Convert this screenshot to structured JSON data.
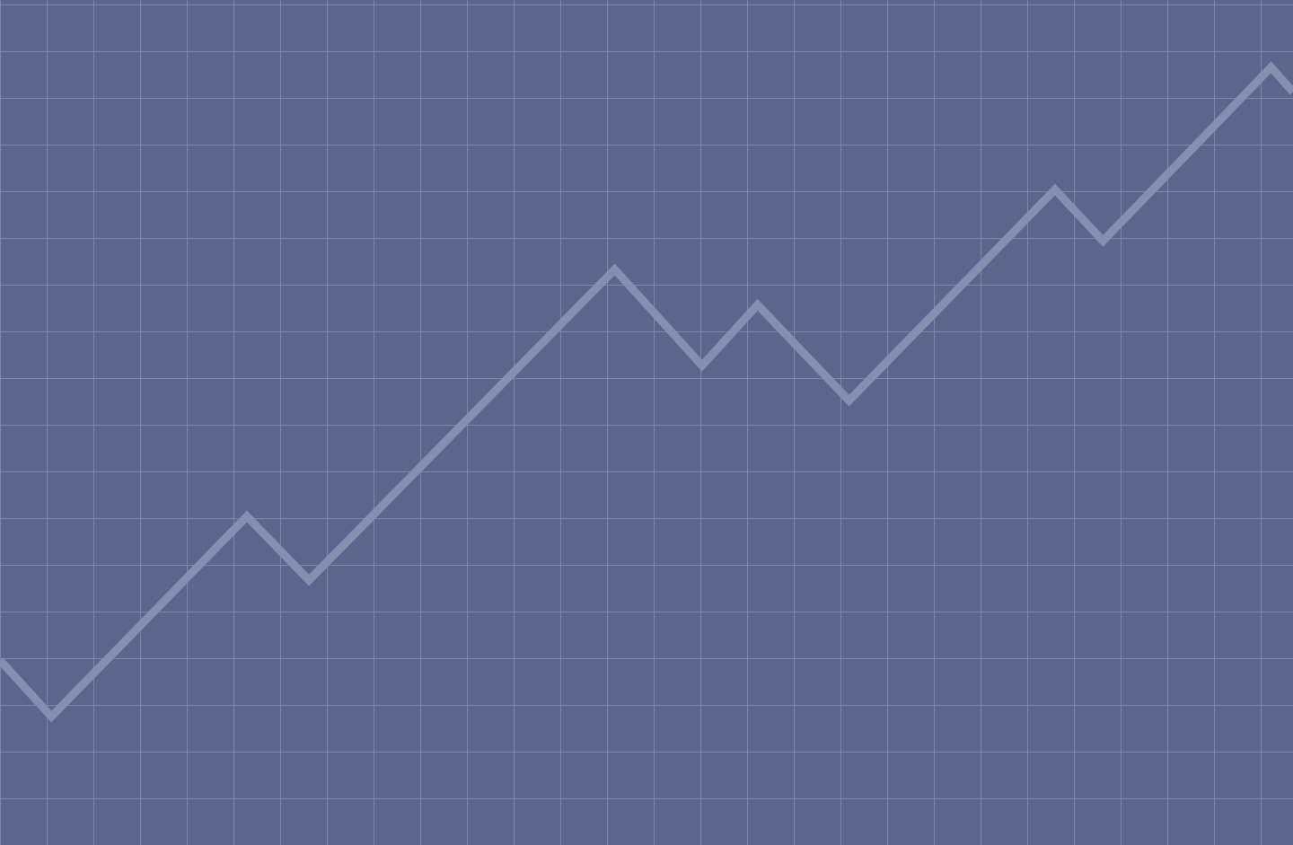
{
  "colors": {
    "background": "#5c658b",
    "grid": "#7e88a8",
    "line": "#8590b0"
  },
  "chart_data": {
    "type": "line",
    "title": "",
    "xlabel": "",
    "ylabel": "",
    "grid": true,
    "axes_visible": false,
    "xlim": [
      0,
      27.7
    ],
    "ylim": [
      0,
      18.1
    ],
    "series": [
      {
        "x": [
          0,
          1.1,
          5.29,
          6.62,
          13.17,
          15.04,
          16.23,
          18.19,
          22.6,
          23.63,
          27.23,
          27.7
        ],
        "y": [
          3.96,
          2.75,
          7.04,
          5.67,
          12.33,
          10.27,
          11.57,
          9.52,
          14.04,
          12.94,
          16.66,
          16.13
        ]
      }
    ]
  }
}
